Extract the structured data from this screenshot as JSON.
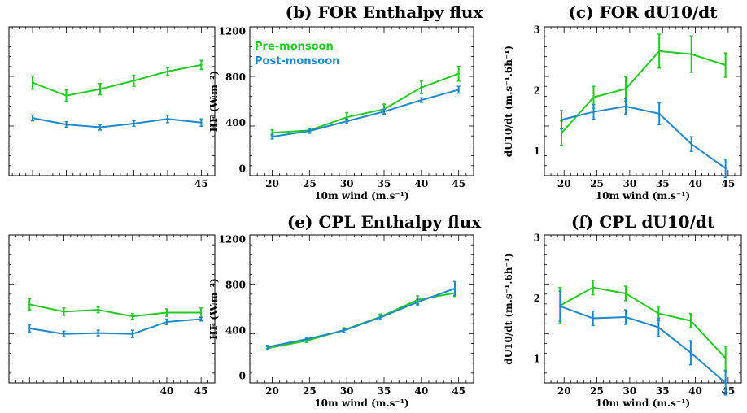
{
  "colors": {
    "pre": "#22c922",
    "post": "#1e88c8"
  },
  "chart_data": [
    {
      "id": "a",
      "type": "line",
      "title": "",
      "xlabel": "",
      "ylabel": "",
      "xlim": [
        16.5,
        47
      ],
      "ylim": [
        0,
        1.6
      ],
      "xticks": [
        45
      ],
      "yticks": [],
      "xminor": [
        20,
        25,
        30,
        35,
        40
      ],
      "series": [
        {
          "name": "",
          "color_key": "pre",
          "x": [
            20,
            25,
            30,
            35,
            40,
            45
          ],
          "y": [
            1.0,
            0.86,
            0.93,
            1.02,
            1.12,
            1.19
          ],
          "err": [
            0.07,
            0.06,
            0.06,
            0.06,
            0.04,
            0.05
          ]
        },
        {
          "name": "",
          "color_key": "post",
          "x": [
            20,
            25,
            30,
            35,
            40,
            45
          ],
          "y": [
            0.62,
            0.55,
            0.52,
            0.56,
            0.61,
            0.57
          ],
          "err": [
            0.03,
            0.03,
            0.03,
            0.03,
            0.04,
            0.04
          ]
        }
      ]
    },
    {
      "id": "b",
      "type": "line",
      "title": "(b) FOR Enthalpy flux",
      "xlabel": "10m wind (m.s⁻¹)",
      "ylabel": "HF (W.m⁻²)",
      "xlim": [
        17,
        47
      ],
      "ylim": [
        -60,
        1240
      ],
      "xticks": [
        20,
        25,
        30,
        35,
        40,
        45
      ],
      "yticks": [
        0,
        400,
        800,
        1200
      ],
      "legend": [
        "Pre-monsoon",
        "Post-monsoon"
      ],
      "series": [
        {
          "name": "Pre-monsoon",
          "color_key": "pre",
          "x": [
            20,
            25,
            30,
            35,
            40,
            45
          ],
          "y": [
            315,
            335,
            450,
            520,
            710,
            830
          ],
          "err": [
            25,
            20,
            40,
            45,
            55,
            65
          ]
        },
        {
          "name": "Post-monsoon",
          "color_key": "post",
          "x": [
            20,
            25,
            30,
            35,
            40,
            45
          ],
          "y": [
            280,
            330,
            415,
            500,
            600,
            690
          ],
          "err": [
            20,
            20,
            20,
            20,
            20,
            30
          ]
        }
      ]
    },
    {
      "id": "c",
      "type": "line",
      "title": "(c) FOR dU10/dt",
      "xlabel": "10m wind (m.s⁻¹)",
      "ylabel": "dU10/dt (m.s⁻¹.6h⁻¹)",
      "xlim": [
        17,
        47
      ],
      "ylim": [
        0.6,
        3.05
      ],
      "xticks": [
        20,
        25,
        30,
        35,
        40,
        45
      ],
      "yticks": [
        1,
        2,
        3
      ],
      "series": [
        {
          "name": "",
          "color_key": "pre",
          "x": [
            19.6,
            24.5,
            29.4,
            34.5,
            39.4,
            44.6
          ],
          "y": [
            1.3,
            1.89,
            2.03,
            2.65,
            2.6,
            2.42
          ],
          "err": [
            0.2,
            0.18,
            0.2,
            0.28,
            0.3,
            0.2
          ]
        },
        {
          "name": "",
          "color_key": "post",
          "x": [
            19.6,
            24.5,
            29.4,
            34.5,
            39.4,
            44.6
          ],
          "y": [
            1.52,
            1.65,
            1.74,
            1.62,
            1.12,
            0.72
          ],
          "err": [
            0.15,
            0.12,
            0.13,
            0.18,
            0.12,
            0.15
          ]
        }
      ]
    },
    {
      "id": "d",
      "type": "line",
      "title": "",
      "xlabel": "",
      "ylabel": "",
      "xlim": [
        17,
        47
      ],
      "ylim": [
        0,
        1.6
      ],
      "xticks": [
        40,
        45
      ],
      "yticks": [],
      "xminor": [
        20,
        25,
        30,
        35
      ],
      "series": [
        {
          "name": "",
          "color_key": "pre",
          "x": [
            20,
            25,
            30,
            35,
            40,
            45
          ],
          "y": [
            0.85,
            0.77,
            0.79,
            0.72,
            0.76,
            0.76
          ],
          "err": [
            0.06,
            0.04,
            0.03,
            0.03,
            0.04,
            0.05
          ]
        },
        {
          "name": "",
          "color_key": "post",
          "x": [
            20,
            25,
            30,
            35,
            40,
            45
          ],
          "y": [
            0.59,
            0.53,
            0.54,
            0.53,
            0.66,
            0.69
          ],
          "err": [
            0.04,
            0.03,
            0.03,
            0.04,
            0.03,
            0.02
          ]
        }
      ]
    },
    {
      "id": "e",
      "type": "line",
      "title": "(e) CPL Enthalpy flux",
      "xlabel": "10m wind (m.s⁻¹)",
      "ylabel": "HF (W.m⁻²)",
      "xlim": [
        17,
        47
      ],
      "ylim": [
        -60,
        1240
      ],
      "xticks": [
        20,
        25,
        30,
        35,
        40,
        45
      ],
      "yticks": [
        0,
        400,
        800,
        1200
      ],
      "series": [
        {
          "name": "",
          "color_key": "pre",
          "x": [
            19.4,
            24.6,
            29.6,
            34.5,
            39.5,
            44.5
          ],
          "y": [
            245,
            310,
            405,
            520,
            670,
            730
          ],
          "err": [
            15,
            15,
            20,
            25,
            35,
            30
          ]
        },
        {
          "name": "",
          "color_key": "post",
          "x": [
            19.4,
            24.6,
            29.6,
            34.5,
            39.5,
            44.5
          ],
          "y": [
            255,
            325,
            400,
            515,
            650,
            770
          ],
          "err": [
            15,
            15,
            15,
            20,
            25,
            60
          ]
        }
      ]
    },
    {
      "id": "f",
      "type": "line",
      "title": "(f) CPL dU10/dt",
      "xlabel": "10m wind (m.s⁻¹)",
      "ylabel": "dU10/dt (m.s⁻¹.6h⁻¹)",
      "xlim": [
        17,
        47
      ],
      "ylim": [
        0.6,
        3.05
      ],
      "xticks": [
        20,
        25,
        30,
        35,
        40,
        45
      ],
      "yticks": [
        1,
        2,
        3
      ],
      "series": [
        {
          "name": "",
          "color_key": "pre",
          "x": [
            19.4,
            24.4,
            29.4,
            34.4,
            39.3,
            44.6
          ],
          "y": [
            1.88,
            2.18,
            2.08,
            1.75,
            1.63,
            1.01
          ],
          "err": [
            0.3,
            0.12,
            0.12,
            0.12,
            0.12,
            0.2
          ]
        },
        {
          "name": "",
          "color_key": "post",
          "x": [
            19.4,
            24.4,
            29.4,
            34.4,
            39.3,
            44.6
          ],
          "y": [
            1.87,
            1.67,
            1.69,
            1.52,
            1.1,
            0.6
          ],
          "err": [
            0.25,
            0.12,
            0.12,
            0.15,
            0.2,
            0.2
          ]
        }
      ]
    }
  ]
}
